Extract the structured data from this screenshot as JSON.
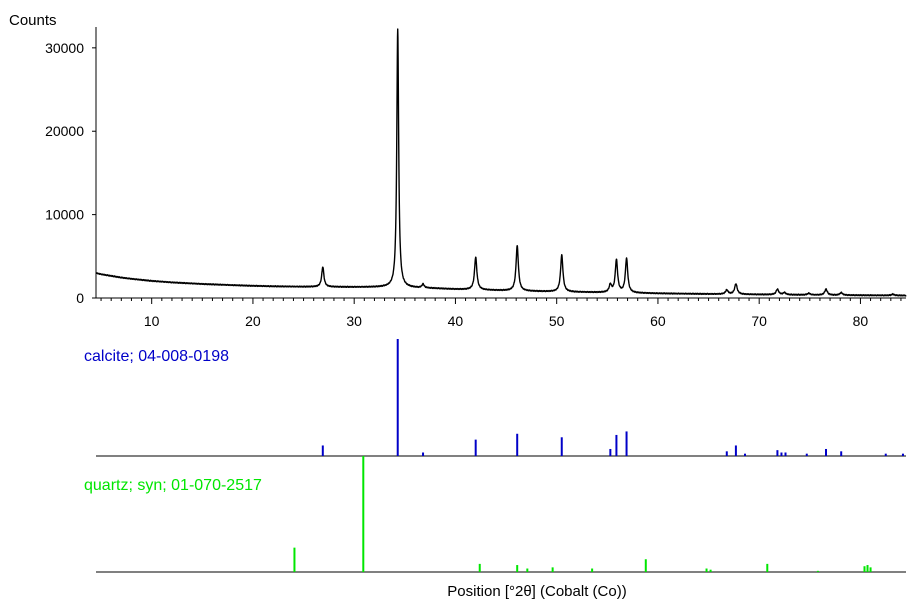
{
  "chart_data": {
    "type": "line",
    "ylabel": "Counts",
    "xlabel": "Position [°2θ] (Cobalt (Co))",
    "xlim": [
      4.5,
      84.5
    ],
    "ylim": [
      0,
      32500
    ],
    "x_ticks": [
      10,
      20,
      30,
      40,
      50,
      60,
      70,
      80
    ],
    "y_ticks": [
      0,
      10000,
      20000,
      30000
    ],
    "grid": false,
    "series": [
      {
        "color": "#000000",
        "baseline": [
          [
            4.5,
            3000
          ],
          [
            5,
            2850
          ],
          [
            6,
            2650
          ],
          [
            7,
            2450
          ],
          [
            8,
            2300
          ],
          [
            10,
            2050
          ],
          [
            12,
            1870
          ],
          [
            15,
            1680
          ],
          [
            18,
            1540
          ],
          [
            20,
            1460
          ],
          [
            22,
            1400
          ],
          [
            25,
            1350
          ],
          [
            28,
            1330
          ],
          [
            30,
            1310
          ],
          [
            33,
            1300
          ],
          [
            35,
            1250
          ],
          [
            38,
            1150
          ],
          [
            40,
            1050
          ],
          [
            43,
            950
          ],
          [
            46,
            850
          ],
          [
            50,
            750
          ],
          [
            55,
            650
          ],
          [
            60,
            550
          ],
          [
            65,
            480
          ],
          [
            70,
            420
          ],
          [
            75,
            370
          ],
          [
            80,
            330
          ],
          [
            84.5,
            300
          ]
        ],
        "peaks": [
          {
            "x": 26.9,
            "y": 2400,
            "w": 0.13
          },
          {
            "x": 34.3,
            "y": 31000,
            "w": 0.11
          },
          {
            "x": 36.8,
            "y": 450,
            "w": 0.13
          },
          {
            "x": 42.0,
            "y": 3900,
            "w": 0.14
          },
          {
            "x": 46.1,
            "y": 5400,
            "w": 0.14
          },
          {
            "x": 50.5,
            "y": 4400,
            "w": 0.14
          },
          {
            "x": 55.3,
            "y": 900,
            "w": 0.14
          },
          {
            "x": 55.9,
            "y": 3900,
            "w": 0.14
          },
          {
            "x": 56.9,
            "y": 4100,
            "w": 0.14
          },
          {
            "x": 66.8,
            "y": 500,
            "w": 0.15
          },
          {
            "x": 67.7,
            "y": 1250,
            "w": 0.15
          },
          {
            "x": 71.8,
            "y": 650,
            "w": 0.15
          },
          {
            "x": 72.5,
            "y": 250,
            "w": 0.15
          },
          {
            "x": 74.9,
            "y": 200,
            "w": 0.15
          },
          {
            "x": 76.6,
            "y": 700,
            "w": 0.15
          },
          {
            "x": 78.1,
            "y": 300,
            "w": 0.15
          },
          {
            "x": 83.2,
            "y": 150,
            "w": 0.15
          }
        ]
      }
    ],
    "reference_patterns": [
      {
        "label": "calcite; 04-008-0198",
        "color": "#0000c8",
        "sticks": [
          [
            26.9,
            9
          ],
          [
            34.3,
            100
          ],
          [
            36.8,
            3
          ],
          [
            42.0,
            14
          ],
          [
            46.1,
            19
          ],
          [
            50.5,
            16
          ],
          [
            55.3,
            6
          ],
          [
            55.9,
            18
          ],
          [
            56.9,
            21
          ],
          [
            66.8,
            4
          ],
          [
            67.7,
            9
          ],
          [
            68.6,
            2
          ],
          [
            71.8,
            5
          ],
          [
            72.2,
            3
          ],
          [
            72.6,
            3
          ],
          [
            74.7,
            2
          ],
          [
            76.6,
            6
          ],
          [
            78.1,
            4
          ],
          [
            82.5,
            2
          ],
          [
            84.2,
            2
          ]
        ]
      },
      {
        "label": "quartz; syn; 01-070-2517",
        "color": "#00e600",
        "sticks": [
          [
            24.1,
            21
          ],
          [
            30.9,
            100
          ],
          [
            42.4,
            7
          ],
          [
            46.1,
            6
          ],
          [
            47.1,
            3
          ],
          [
            49.6,
            4
          ],
          [
            53.5,
            3
          ],
          [
            58.8,
            11
          ],
          [
            64.8,
            3
          ],
          [
            65.2,
            2
          ],
          [
            70.8,
            7
          ],
          [
            75.8,
            1
          ],
          [
            80.4,
            5
          ],
          [
            80.7,
            6
          ],
          [
            81.0,
            4
          ]
        ]
      }
    ]
  }
}
